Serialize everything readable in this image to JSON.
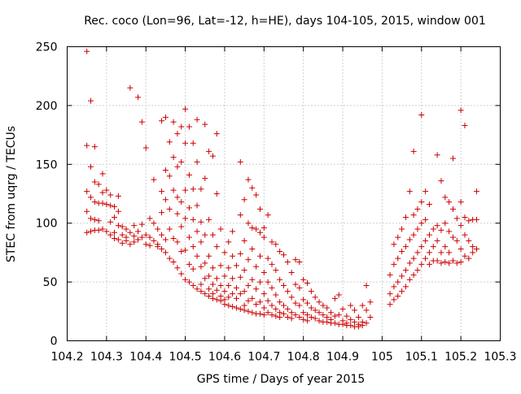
{
  "chart_data": {
    "type": "scatter",
    "title": "Rec. coco (Lon=96, Lat=-12, h=HE), days 104-105, 2015, window 001",
    "xlabel": "GPS time / Days of year 2015",
    "ylabel": "STEC from uqrg / TECUs",
    "xlim": [
      104.2,
      105.3
    ],
    "ylim": [
      0,
      250
    ],
    "xticks": [
      "104.2",
      "104.3",
      "104.4",
      "104.5",
      "104.6",
      "104.7",
      "104.8",
      "104.9",
      "105",
      "105.1",
      "105.2",
      "105.3"
    ],
    "yticks": [
      "0",
      "50",
      "100",
      "150",
      "200",
      "250"
    ],
    "grid": true,
    "marker": "+",
    "series_color": "#cc0000",
    "points": [
      [
        104.25,
        246
      ],
      [
        104.25,
        166
      ],
      [
        104.25,
        127
      ],
      [
        104.25,
        110
      ],
      [
        104.25,
        92
      ],
      [
        104.26,
        204
      ],
      [
        104.26,
        148
      ],
      [
        104.26,
        122
      ],
      [
        104.26,
        104
      ],
      [
        104.26,
        93
      ],
      [
        104.27,
        165
      ],
      [
        104.27,
        135
      ],
      [
        104.27,
        118
      ],
      [
        104.27,
        103
      ],
      [
        104.27,
        94
      ],
      [
        104.28,
        133
      ],
      [
        104.28,
        117
      ],
      [
        104.28,
        102
      ],
      [
        104.28,
        94
      ],
      [
        104.29,
        142
      ],
      [
        104.29,
        126
      ],
      [
        104.29,
        117
      ],
      [
        104.29,
        95
      ],
      [
        104.3,
        128
      ],
      [
        104.3,
        116
      ],
      [
        104.3,
        93
      ],
      [
        104.31,
        124
      ],
      [
        104.31,
        115
      ],
      [
        104.31,
        101
      ],
      [
        104.31,
        90
      ],
      [
        104.32,
        114
      ],
      [
        104.32,
        105
      ],
      [
        104.32,
        92
      ],
      [
        104.32,
        87
      ],
      [
        104.33,
        123
      ],
      [
        104.33,
        110
      ],
      [
        104.33,
        98
      ],
      [
        104.33,
        86
      ],
      [
        104.34,
        97
      ],
      [
        104.34,
        90
      ],
      [
        104.34,
        83
      ],
      [
        104.35,
        95
      ],
      [
        104.35,
        88
      ],
      [
        104.35,
        85
      ],
      [
        104.36,
        215
      ],
      [
        104.36,
        92
      ],
      [
        104.36,
        82
      ],
      [
        104.37,
        98
      ],
      [
        104.37,
        89
      ],
      [
        104.37,
        84
      ],
      [
        104.38,
        207
      ],
      [
        104.38,
        93
      ],
      [
        104.38,
        86
      ],
      [
        104.39,
        186
      ],
      [
        104.39,
        99
      ],
      [
        104.39,
        88
      ],
      [
        104.4,
        164
      ],
      [
        104.4,
        90
      ],
      [
        104.4,
        82
      ],
      [
        104.41,
        104
      ],
      [
        104.41,
        88
      ],
      [
        104.41,
        81
      ],
      [
        104.42,
        137
      ],
      [
        104.42,
        100
      ],
      [
        104.42,
        85
      ],
      [
        104.43,
        95
      ],
      [
        104.43,
        82
      ],
      [
        104.43,
        80
      ],
      [
        104.44,
        187
      ],
      [
        104.44,
        127
      ],
      [
        104.44,
        109
      ],
      [
        104.44,
        90
      ],
      [
        104.44,
        78
      ],
      [
        104.45,
        190
      ],
      [
        104.45,
        145
      ],
      [
        104.45,
        120
      ],
      [
        104.45,
        86
      ],
      [
        104.45,
        75
      ],
      [
        104.46,
        169
      ],
      [
        104.46,
        140
      ],
      [
        104.46,
        112
      ],
      [
        104.46,
        95
      ],
      [
        104.46,
        70
      ],
      [
        104.47,
        186
      ],
      [
        104.47,
        156
      ],
      [
        104.47,
        128
      ],
      [
        104.47,
        87
      ],
      [
        104.47,
        67
      ],
      [
        104.48,
        176
      ],
      [
        104.48,
        148
      ],
      [
        104.48,
        122
      ],
      [
        104.48,
        108
      ],
      [
        104.48,
        84
      ],
      [
        104.48,
        62
      ],
      [
        104.49,
        182
      ],
      [
        104.49,
        152
      ],
      [
        104.49,
        118
      ],
      [
        104.49,
        97
      ],
      [
        104.49,
        76
      ],
      [
        104.49,
        57
      ],
      [
        104.5,
        197
      ],
      [
        104.5,
        168
      ],
      [
        104.5,
        128
      ],
      [
        104.5,
        104
      ],
      [
        104.5,
        77
      ],
      [
        104.5,
        52
      ],
      [
        104.51,
        182
      ],
      [
        104.51,
        141
      ],
      [
        104.51,
        113
      ],
      [
        104.51,
        88
      ],
      [
        104.51,
        65
      ],
      [
        104.51,
        50
      ],
      [
        104.52,
        168
      ],
      [
        104.52,
        129
      ],
      [
        104.52,
        103
      ],
      [
        104.52,
        80
      ],
      [
        104.52,
        61
      ],
      [
        104.52,
        47
      ],
      [
        104.53,
        188
      ],
      [
        104.53,
        152
      ],
      [
        104.53,
        115
      ],
      [
        104.53,
        93
      ],
      [
        104.53,
        72
      ],
      [
        104.53,
        44
      ],
      [
        104.54,
        129
      ],
      [
        104.54,
        101
      ],
      [
        104.54,
        84
      ],
      [
        104.54,
        63
      ],
      [
        104.54,
        48
      ],
      [
        104.54,
        42
      ],
      [
        104.55,
        184
      ],
      [
        104.55,
        138
      ],
      [
        104.55,
        90
      ],
      [
        104.55,
        66
      ],
      [
        104.55,
        53
      ],
      [
        104.55,
        40
      ],
      [
        104.56,
        161
      ],
      [
        104.56,
        103
      ],
      [
        104.56,
        72
      ],
      [
        104.56,
        55
      ],
      [
        104.56,
        44
      ],
      [
        104.56,
        38
      ],
      [
        104.57,
        157
      ],
      [
        104.57,
        90
      ],
      [
        104.57,
        62
      ],
      [
        104.57,
        48
      ],
      [
        104.57,
        40
      ],
      [
        104.57,
        36
      ],
      [
        104.58,
        176
      ],
      [
        104.58,
        125
      ],
      [
        104.58,
        80
      ],
      [
        104.58,
        53
      ],
      [
        104.58,
        43
      ],
      [
        104.58,
        35
      ],
      [
        104.59,
        95
      ],
      [
        104.59,
        64
      ],
      [
        104.59,
        47
      ],
      [
        104.59,
        38
      ],
      [
        104.59,
        34
      ],
      [
        104.6,
        75
      ],
      [
        104.6,
        55
      ],
      [
        104.6,
        42
      ],
      [
        104.6,
        35
      ],
      [
        104.6,
        31
      ],
      [
        104.61,
        84
      ],
      [
        104.61,
        62
      ],
      [
        104.61,
        47
      ],
      [
        104.61,
        37
      ],
      [
        104.61,
        30
      ],
      [
        104.62,
        93
      ],
      [
        104.62,
        72
      ],
      [
        104.62,
        53
      ],
      [
        104.62,
        40
      ],
      [
        104.62,
        29
      ],
      [
        104.63,
        64
      ],
      [
        104.63,
        45
      ],
      [
        104.63,
        36
      ],
      [
        104.63,
        28
      ],
      [
        104.64,
        152
      ],
      [
        104.64,
        107
      ],
      [
        104.64,
        74
      ],
      [
        104.64,
        54
      ],
      [
        104.64,
        40
      ],
      [
        104.64,
        27
      ],
      [
        104.65,
        120
      ],
      [
        104.65,
        85
      ],
      [
        104.65,
        60
      ],
      [
        104.65,
        42
      ],
      [
        104.65,
        30
      ],
      [
        104.65,
        26
      ],
      [
        104.66,
        137
      ],
      [
        104.66,
        100
      ],
      [
        104.66,
        69
      ],
      [
        104.66,
        47
      ],
      [
        104.66,
        34
      ],
      [
        104.66,
        25
      ],
      [
        104.67,
        130
      ],
      [
        104.67,
        96
      ],
      [
        104.67,
        78
      ],
      [
        104.67,
        52
      ],
      [
        104.67,
        36
      ],
      [
        104.67,
        24
      ],
      [
        104.68,
        124
      ],
      [
        104.68,
        95
      ],
      [
        104.68,
        63
      ],
      [
        104.68,
        44
      ],
      [
        104.68,
        31
      ],
      [
        104.68,
        23
      ],
      [
        104.69,
        112
      ],
      [
        104.69,
        92
      ],
      [
        104.69,
        72
      ],
      [
        104.69,
        50
      ],
      [
        104.69,
        33
      ],
      [
        104.69,
        23
      ],
      [
        104.7,
        96
      ],
      [
        104.7,
        88
      ],
      [
        104.7,
        58
      ],
      [
        104.7,
        40
      ],
      [
        104.7,
        28
      ],
      [
        104.7,
        22
      ],
      [
        104.71,
        107
      ],
      [
        104.71,
        70
      ],
      [
        104.71,
        50
      ],
      [
        104.71,
        34
      ],
      [
        104.71,
        24
      ],
      [
        104.72,
        84
      ],
      [
        104.72,
        65
      ],
      [
        104.72,
        45
      ],
      [
        104.72,
        30
      ],
      [
        104.72,
        22
      ],
      [
        104.73,
        82
      ],
      [
        104.73,
        60
      ],
      [
        104.73,
        39
      ],
      [
        104.73,
        27
      ],
      [
        104.73,
        21
      ],
      [
        104.74,
        76
      ],
      [
        104.74,
        52
      ],
      [
        104.74,
        33
      ],
      [
        104.74,
        24
      ],
      [
        104.74,
        20
      ],
      [
        104.75,
        73
      ],
      [
        104.75,
        47
      ],
      [
        104.75,
        30
      ],
      [
        104.75,
        23
      ],
      [
        104.76,
        67
      ],
      [
        104.76,
        42
      ],
      [
        104.76,
        27
      ],
      [
        104.76,
        20
      ],
      [
        104.77,
        58
      ],
      [
        104.77,
        37
      ],
      [
        104.77,
        24
      ],
      [
        104.77,
        19
      ],
      [
        104.78,
        69
      ],
      [
        104.78,
        48
      ],
      [
        104.78,
        32
      ],
      [
        104.78,
        22
      ],
      [
        104.79,
        67
      ],
      [
        104.79,
        45
      ],
      [
        104.79,
        30
      ],
      [
        104.79,
        20
      ],
      [
        104.8,
        52
      ],
      [
        104.8,
        35
      ],
      [
        104.8,
        24
      ],
      [
        104.8,
        18
      ],
      [
        104.81,
        49
      ],
      [
        104.81,
        32
      ],
      [
        104.81,
        22
      ],
      [
        104.81,
        17
      ],
      [
        104.82,
        42
      ],
      [
        104.82,
        28
      ],
      [
        104.82,
        20
      ],
      [
        104.83,
        37
      ],
      [
        104.83,
        26
      ],
      [
        104.83,
        19
      ],
      [
        104.84,
        33
      ],
      [
        104.84,
        24
      ],
      [
        104.84,
        17
      ],
      [
        104.85,
        30
      ],
      [
        104.85,
        22
      ],
      [
        104.85,
        16
      ],
      [
        104.86,
        28
      ],
      [
        104.86,
        20
      ],
      [
        104.86,
        16
      ],
      [
        104.87,
        24
      ],
      [
        104.87,
        18
      ],
      [
        104.87,
        15
      ],
      [
        104.88,
        36
      ],
      [
        104.88,
        21
      ],
      [
        104.88,
        15
      ],
      [
        104.89,
        39
      ],
      [
        104.89,
        22
      ],
      [
        104.89,
        14
      ],
      [
        104.9,
        27
      ],
      [
        104.9,
        17
      ],
      [
        104.9,
        14
      ],
      [
        104.91,
        21
      ],
      [
        104.91,
        15
      ],
      [
        104.91,
        13
      ],
      [
        104.92,
        30
      ],
      [
        104.92,
        18
      ],
      [
        104.92,
        13
      ],
      [
        104.93,
        26
      ],
      [
        104.93,
        16
      ],
      [
        104.93,
        12
      ],
      [
        104.94,
        20
      ],
      [
        104.94,
        14
      ],
      [
        104.94,
        12
      ],
      [
        104.95,
        30
      ],
      [
        104.95,
        16
      ],
      [
        104.95,
        13
      ],
      [
        104.96,
        47
      ],
      [
        104.96,
        26
      ],
      [
        104.96,
        15
      ],
      [
        104.97,
        33
      ],
      [
        104.97,
        20
      ],
      [
        105.02,
        56
      ],
      [
        105.02,
        40
      ],
      [
        105.02,
        31
      ],
      [
        105.03,
        82
      ],
      [
        105.03,
        65
      ],
      [
        105.03,
        46
      ],
      [
        105.03,
        35
      ],
      [
        105.04,
        88
      ],
      [
        105.04,
        70
      ],
      [
        105.04,
        50
      ],
      [
        105.04,
        38
      ],
      [
        105.05,
        95
      ],
      [
        105.05,
        76
      ],
      [
        105.05,
        55
      ],
      [
        105.05,
        42
      ],
      [
        105.06,
        105
      ],
      [
        105.06,
        80
      ],
      [
        105.06,
        60
      ],
      [
        105.06,
        46
      ],
      [
        105.07,
        127
      ],
      [
        105.07,
        86
      ],
      [
        105.07,
        66
      ],
      [
        105.07,
        52
      ],
      [
        105.08,
        161
      ],
      [
        105.08,
        107
      ],
      [
        105.08,
        90
      ],
      [
        105.08,
        70
      ],
      [
        105.08,
        56
      ],
      [
        105.09,
        112
      ],
      [
        105.09,
        95
      ],
      [
        105.09,
        75
      ],
      [
        105.09,
        60
      ],
      [
        105.1,
        192
      ],
      [
        105.1,
        118
      ],
      [
        105.1,
        100
      ],
      [
        105.1,
        80
      ],
      [
        105.1,
        65
      ],
      [
        105.11,
        127
      ],
      [
        105.11,
        103
      ],
      [
        105.11,
        85
      ],
      [
        105.11,
        70
      ],
      [
        105.12,
        116
      ],
      [
        105.12,
        90
      ],
      [
        105.12,
        75
      ],
      [
        105.12,
        65
      ],
      [
        105.13,
        95
      ],
      [
        105.13,
        80
      ],
      [
        105.13,
        68
      ],
      [
        105.14,
        158
      ],
      [
        105.14,
        98
      ],
      [
        105.14,
        85
      ],
      [
        105.14,
        68
      ],
      [
        105.15,
        136
      ],
      [
        105.15,
        94
      ],
      [
        105.15,
        75
      ],
      [
        105.15,
        66
      ],
      [
        105.16,
        122
      ],
      [
        105.16,
        100
      ],
      [
        105.16,
        80
      ],
      [
        105.16,
        67
      ],
      [
        105.17,
        118
      ],
      [
        105.17,
        93
      ],
      [
        105.17,
        75
      ],
      [
        105.17,
        66
      ],
      [
        105.18,
        155
      ],
      [
        105.18,
        112
      ],
      [
        105.18,
        88
      ],
      [
        105.18,
        68
      ],
      [
        105.19,
        104
      ],
      [
        105.19,
        85
      ],
      [
        105.19,
        66
      ],
      [
        105.2,
        196
      ],
      [
        105.2,
        118
      ],
      [
        105.2,
        98
      ],
      [
        105.2,
        78
      ],
      [
        105.2,
        67
      ],
      [
        105.21,
        183
      ],
      [
        105.21,
        105
      ],
      [
        105.21,
        90
      ],
      [
        105.21,
        72
      ],
      [
        105.22,
        102
      ],
      [
        105.22,
        85
      ],
      [
        105.22,
        70
      ],
      [
        105.23,
        103
      ],
      [
        105.23,
        80
      ],
      [
        105.23,
        75
      ],
      [
        105.24,
        127
      ],
      [
        105.24,
        103
      ],
      [
        105.24,
        78
      ]
    ]
  }
}
